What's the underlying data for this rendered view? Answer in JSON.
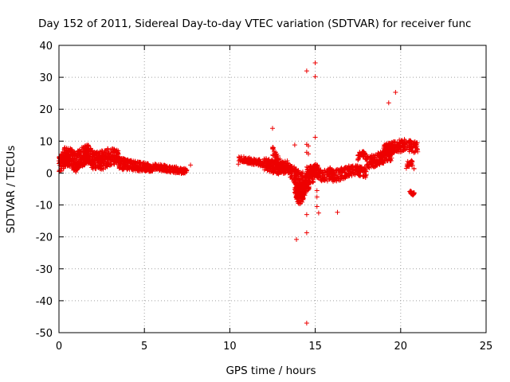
{
  "chart_data": {
    "type": "scatter",
    "title": "Day 152 of 2011, Sidereal Day-to-day VTEC variation (SDTVAR) for receiver func",
    "xlabel": "GPS time / hours",
    "ylabel": "SDTVAR / TECUs",
    "xlim": [
      0,
      25
    ],
    "ylim": [
      -50,
      40
    ],
    "xticks": [
      0,
      5,
      10,
      15,
      20,
      25
    ],
    "yticks": [
      40,
      30,
      20,
      10,
      0,
      -10,
      -20,
      -30,
      -40,
      -50
    ],
    "xtick_labels": [
      "0",
      "5",
      "10",
      "15",
      "20",
      "25"
    ],
    "ytick_labels": [
      "40",
      "30",
      "20",
      "10",
      "0",
      "-10",
      "-20",
      "-30",
      "-40",
      "-50"
    ],
    "grid": true,
    "marker": "plus",
    "color": "#ee0000",
    "series": [
      {
        "name": "SDTVAR",
        "outliers": [
          [
            14.5,
            32.0
          ],
          [
            15.0,
            34.5
          ],
          [
            15.0,
            30.2
          ],
          [
            19.3,
            22.0
          ],
          [
            19.7,
            25.3
          ],
          [
            15.0,
            11.2
          ],
          [
            12.5,
            14.0
          ],
          [
            14.5,
            -47.0
          ],
          [
            14.5,
            -18.7
          ],
          [
            13.9,
            -20.8
          ],
          [
            16.3,
            -12.3
          ],
          [
            14.5,
            9.0
          ],
          [
            14.6,
            8.5
          ],
          [
            14.5,
            6.5
          ],
          [
            14.6,
            6.0
          ],
          [
            14.5,
            -13.0
          ],
          [
            13.8,
            8.8
          ],
          [
            15.1,
            -7.5
          ],
          [
            15.1,
            -10.5
          ],
          [
            15.2,
            -12.5
          ],
          [
            7.7,
            2.5
          ],
          [
            10.5,
            2.8
          ],
          [
            15.1,
            -5.5
          ]
        ],
        "clusters": [
          {
            "x": [
              0.0,
              1.0
            ],
            "center": [
              2,
              5,
              5,
              3
            ],
            "spread": [
              3,
              3,
              3,
              3
            ],
            "n": 220
          },
          {
            "x": [
              1.0,
              2.0
            ],
            "center": [
              4,
              5,
              6,
              4
            ],
            "spread": [
              3,
              3,
              3,
              3
            ],
            "n": 220
          },
          {
            "x": [
              2.0,
              3.5
            ],
            "center": [
              4,
              4,
              5,
              5
            ],
            "spread": [
              2.5,
              3,
              3,
              2
            ],
            "n": 240
          },
          {
            "x": [
              3.5,
              5.5
            ],
            "center": [
              3,
              2.5,
              2,
              1.5
            ],
            "spread": [
              2,
              1.5,
              1.5,
              1
            ],
            "n": 240
          },
          {
            "x": [
              5.5,
              7.5
            ],
            "center": [
              2,
              1.5,
              1,
              0.5
            ],
            "spread": [
              1,
              1,
              1,
              0.8
            ],
            "n": 200
          },
          {
            "x": [
              10.5,
              12.0
            ],
            "center": [
              4.5,
              4,
              3.5,
              3
            ],
            "spread": [
              1,
              1,
              1,
              1
            ],
            "n": 120
          },
          {
            "x": [
              12.0,
              13.5
            ],
            "center": [
              3,
              2,
              1.5,
              2
            ],
            "spread": [
              2,
              2,
              2,
              2
            ],
            "n": 200
          },
          {
            "x": [
              12.5,
              13.3
            ],
            "center": [
              6,
              4,
              2,
              1
            ],
            "spread": [
              2.5,
              2,
              1.5,
              1
            ],
            "n": 80
          },
          {
            "x": [
              13.5,
              15.0
            ],
            "center": [
              1,
              -2,
              -3,
              0
            ],
            "spread": [
              2,
              3,
              3,
              2
            ],
            "n": 200
          },
          {
            "x": [
              13.8,
              14.5
            ],
            "center": [
              -4,
              -7,
              -6,
              -3
            ],
            "spread": [
              2.5,
              3,
              3,
              2
            ],
            "n": 200
          },
          {
            "x": [
              14.5,
              16.0
            ],
            "center": [
              0,
              1,
              -1,
              0
            ],
            "spread": [
              2,
              2,
              2,
              2
            ],
            "n": 180
          },
          {
            "x": [
              16.0,
              18.0
            ],
            "center": [
              -1,
              0,
              1,
              0
            ],
            "spread": [
              2,
              2,
              1.5,
              1.5
            ],
            "n": 200
          },
          {
            "x": [
              17.5,
              18.0
            ],
            "center": [
              5,
              6,
              6,
              5
            ],
            "spread": [
              1,
              1,
              1,
              1
            ],
            "n": 40
          },
          {
            "x": [
              18.0,
              19.5
            ],
            "center": [
              3,
              4,
              5,
              6
            ],
            "spread": [
              2,
              2,
              2,
              2
            ],
            "n": 180
          },
          {
            "x": [
              19.0,
              21.0
            ],
            "center": [
              7,
              8,
              9,
              8
            ],
            "spread": [
              2,
              2,
              2,
              2
            ],
            "n": 240
          },
          {
            "x": [
              20.5,
              20.8
            ],
            "center": [
              -5.5,
              -6,
              -6.5,
              -6
            ],
            "spread": [
              0.5,
              0.5,
              0.5,
              0.5
            ],
            "n": 20
          },
          {
            "x": [
              20.3,
              20.8
            ],
            "center": [
              2,
              3,
              3,
              2
            ],
            "spread": [
              1,
              1,
              1,
              1
            ],
            "n": 25
          }
        ]
      }
    ]
  }
}
